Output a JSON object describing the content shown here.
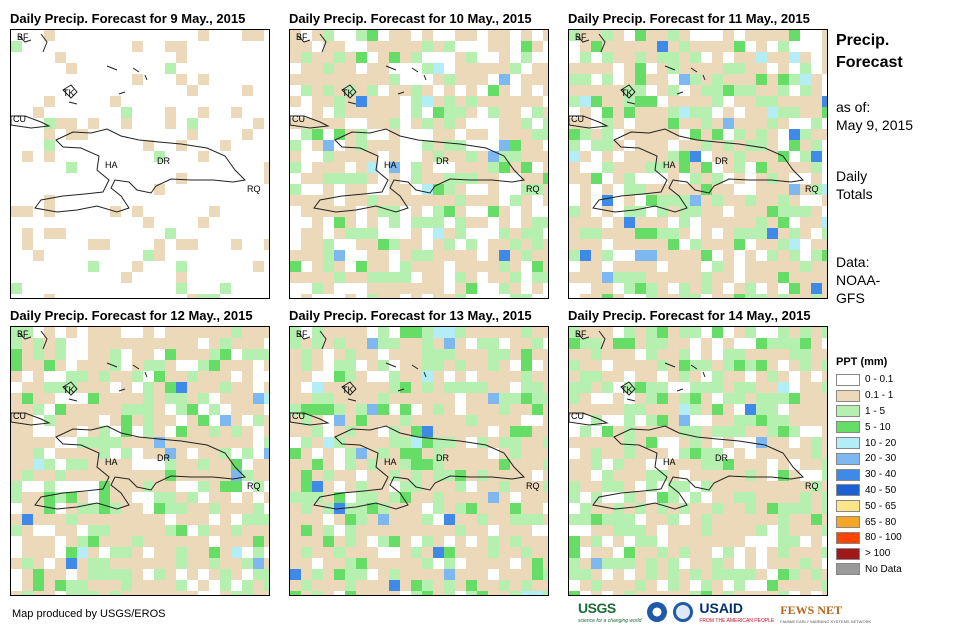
{
  "panels": [
    {
      "title": "Daily Precip. Forecast for 9 May., 2015"
    },
    {
      "title": "Daily Precip. Forecast for 10 May., 2015"
    },
    {
      "title": "Daily Precip. Forecast for 11 May., 2015"
    },
    {
      "title": "Daily Precip. Forecast for 12 May., 2015"
    },
    {
      "title": "Daily Precip. Forecast for 13 May., 2015"
    },
    {
      "title": "Daily Precip. Forecast for 14 May., 2015"
    }
  ],
  "map_labels": {
    "bf": "BF",
    "cu": "CU",
    "tk": "TK",
    "ha": "HA",
    "dr": "DR",
    "rq": "RQ"
  },
  "side": {
    "title_line1": "Precip.",
    "title_line2": "Forecast",
    "asof_line1": "as of:",
    "asof_line2": "May 9, 2015",
    "daily_line1": "Daily",
    "daily_line2": "Totals",
    "data_line1": "Data:",
    "data_line2": "NOAA-",
    "data_line3": "GFS"
  },
  "legend": {
    "title": "PPT (mm)",
    "items": [
      {
        "label": "0 - 0.1",
        "color": "#ffffff"
      },
      {
        "label": "0.1 - 1",
        "color": "#ecd9b9"
      },
      {
        "label": "1 - 5",
        "color": "#b6f0b0"
      },
      {
        "label": "5 - 10",
        "color": "#66dd66"
      },
      {
        "label": "10 - 20",
        "color": "#b3eef6"
      },
      {
        "label": "20 - 30",
        "color": "#7eb8f0"
      },
      {
        "label": "30 - 40",
        "color": "#3f8ae8"
      },
      {
        "label": "40 - 50",
        "color": "#1c5fd6"
      },
      {
        "label": "50 - 65",
        "color": "#fde68a"
      },
      {
        "label": "65 - 80",
        "color": "#f5a623"
      },
      {
        "label": "80 - 100",
        "color": "#ff4500"
      },
      {
        "label": "> 100",
        "color": "#a01818"
      },
      {
        "label": "No Data",
        "color": "#9a9a9a"
      }
    ]
  },
  "credit": "Map produced by USGS/EROS",
  "logos": {
    "usgs": "USGS",
    "usgs_tag": "science for a changing world",
    "usaid": "USAID",
    "usaid_tag": "FROM THE AMERICAN PEOPLE",
    "fews": "FEWS NET",
    "fews_tag": "FAMINE EARLY WARNING SYSTEMS NETWORK"
  }
}
